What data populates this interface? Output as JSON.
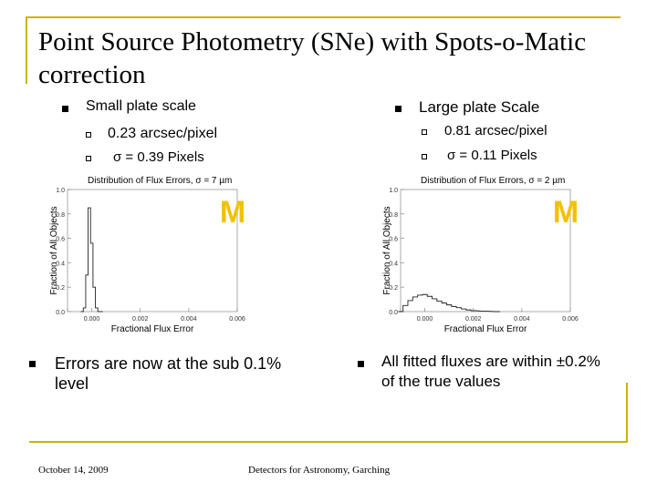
{
  "slide": {
    "title": "Point Source Photometry (SNe) with Spots-o-Matic correction",
    "left": {
      "heading": "Small plate scale",
      "items": [
        "0.23 arcsec/pixel",
        "σ = 0.39 Pixels"
      ]
    },
    "right": {
      "heading": "Large plate Scale",
      "items": [
        "0.81 arcsec/pixel",
        "σ = 0.11 Pixels"
      ]
    },
    "bottom_left": "Errors are now at the sub 0.1% level",
    "bottom_right": "All fitted fluxes are within ±0.2% of the true values",
    "footer_date": "October 14, 2009",
    "footer_center": "Detectors for Astronomy, Garching",
    "logo_letter": "M",
    "colors": {
      "accent": "#c8b400",
      "logo": "#f2c100"
    }
  },
  "chart_data": [
    {
      "type": "line",
      "title": "Distribution of Flux Errors, σ = 7 µm",
      "xlabel": "Fractional Flux Error",
      "ylabel": "Fraction of All Objects",
      "xlim": [
        -0.001,
        0.006
      ],
      "ylim": [
        0.0,
        1.0
      ],
      "xticks": [
        -0.001,
        0.0,
        0.002,
        0.004,
        0.006
      ],
      "xtick_labels": [
        "",
        "0.000",
        "0.002",
        "0.004",
        "0.006"
      ],
      "yticks": [
        0.0,
        0.2,
        0.4,
        0.6,
        0.8,
        1.0
      ],
      "ytick_labels": [
        "0.0",
        "0.2",
        "0.4",
        "0.6",
        "0.8",
        "1.0"
      ],
      "x": [
        -0.0004,
        -0.0003,
        -0.0002,
        -0.0001,
        0.0,
        0.0001,
        0.0002,
        0.0003,
        0.0004
      ],
      "y": [
        0.0,
        0.03,
        0.3,
        0.85,
        0.56,
        0.2,
        0.03,
        0.0,
        0.0
      ]
    },
    {
      "type": "line",
      "title": "Distribution of Flux Errors, σ = 2 µm",
      "xlabel": "Fractional Flux Error",
      "ylabel": "Fraction of All Objects",
      "xlim": [
        -0.001,
        0.006
      ],
      "ylim": [
        0.0,
        1.0
      ],
      "xticks": [
        -0.001,
        0.0,
        0.002,
        0.004,
        0.006
      ],
      "xtick_labels": [
        "",
        "0.000",
        "0.002",
        "0.004",
        "0.006"
      ],
      "yticks": [
        0.0,
        0.2,
        0.4,
        0.6,
        0.8,
        1.0
      ],
      "ytick_labels": [
        "0.0",
        "0.2",
        "0.4",
        "0.6",
        "0.8",
        "1.0"
      ],
      "x": [
        -0.001,
        -0.0008,
        -0.0006,
        -0.0004,
        -0.0002,
        0.0,
        0.0002,
        0.0004,
        0.0006,
        0.0008,
        0.001,
        0.0012,
        0.0014,
        0.0016,
        0.0018,
        0.002,
        0.0025,
        0.003
      ],
      "y": [
        0.0,
        0.05,
        0.09,
        0.12,
        0.135,
        0.14,
        0.125,
        0.105,
        0.085,
        0.07,
        0.055,
        0.042,
        0.032,
        0.022,
        0.014,
        0.008,
        0.003,
        0.0
      ]
    }
  ]
}
